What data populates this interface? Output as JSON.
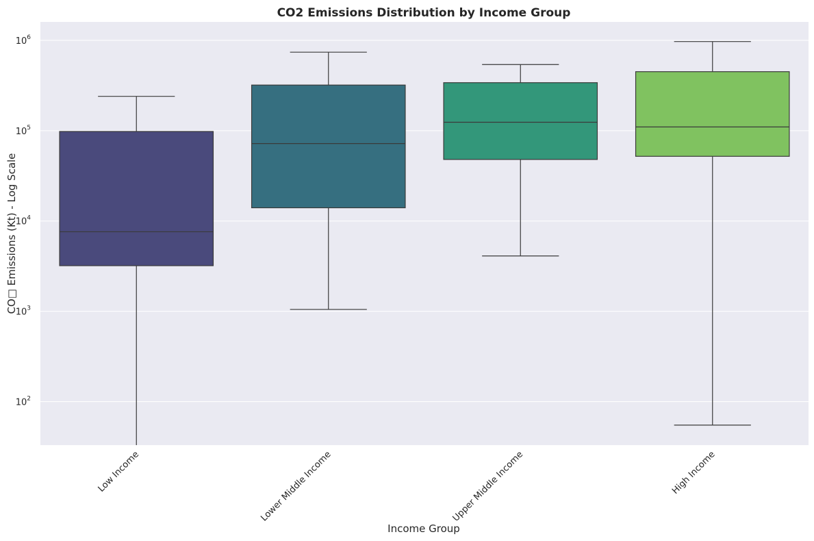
{
  "chart_data": {
    "type": "boxplot",
    "title": "CO2 Emissions Distribution by Income Group",
    "xlabel": "Income Group",
    "ylabel": "CO□ Emissions (Kt) - Log Scale",
    "yscale": "log",
    "ylim": [
      33,
      1600000
    ],
    "ytick_values": [
      100,
      1000,
      10000,
      100000,
      1000000
    ],
    "ytick_labels": [
      {
        "base": "10",
        "exp": "2"
      },
      {
        "base": "10",
        "exp": "3"
      },
      {
        "base": "10",
        "exp": "4"
      },
      {
        "base": "10",
        "exp": "5"
      },
      {
        "base": "10",
        "exp": "6"
      }
    ],
    "categories": [
      "Low Income",
      "Lower Middle Income",
      "Upper Middle Income",
      "High Income"
    ],
    "boxes": [
      {
        "whislo": 33,
        "q1": 3200,
        "med": 7600,
        "q3": 98000,
        "whishi": 240000
      },
      {
        "whislo": 1050,
        "q1": 14000,
        "med": 72000,
        "q3": 320000,
        "whishi": 740000
      },
      {
        "whislo": 4100,
        "q1": 48000,
        "med": 124000,
        "q3": 340000,
        "whishi": 540000
      },
      {
        "whislo": 55,
        "q1": 52000,
        "med": 110000,
        "q3": 450000,
        "whishi": 970000
      }
    ],
    "colors": [
      "#4a4a7c",
      "#366f80",
      "#33977a",
      "#80c260"
    ],
    "background": "#eaeaf2",
    "grid": true,
    "legend": "none"
  }
}
